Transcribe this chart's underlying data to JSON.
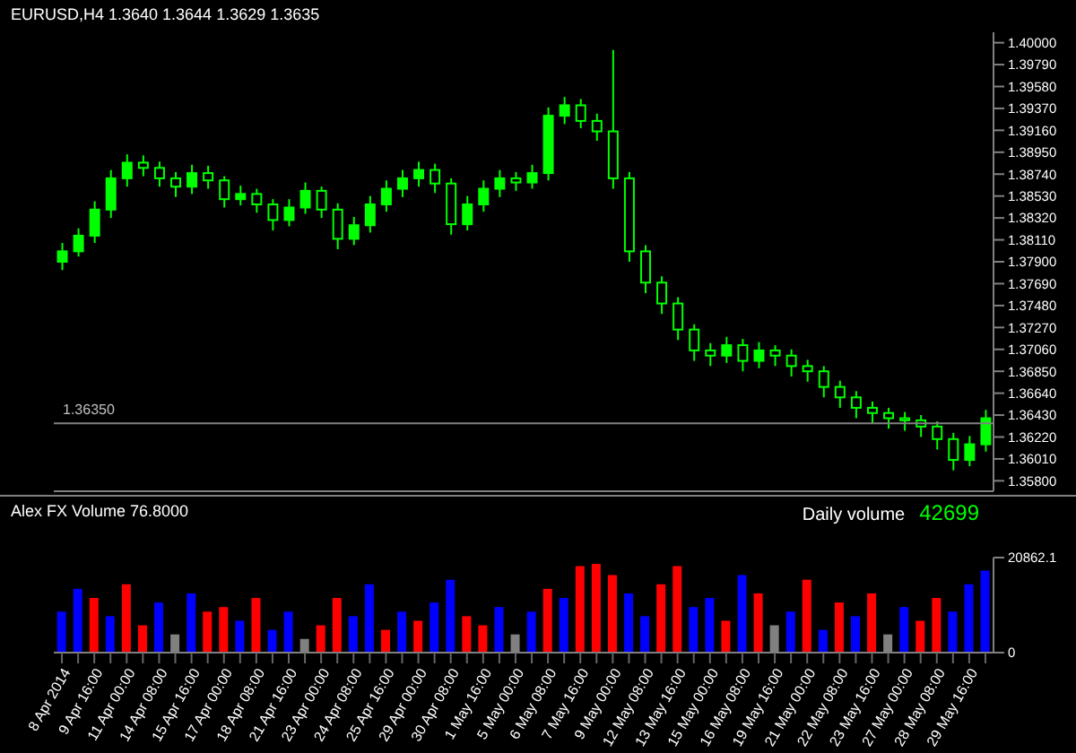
{
  "chart_data": [
    {
      "type": "candlestick",
      "title": "EURUSD,H4 1.3640 1.3644 1.3629 1.3635",
      "color": "#00ff00",
      "tick_labels": "y",
      "ohlc": [
        [
          1.379,
          1.3808,
          1.3782,
          1.38
        ],
        [
          1.38,
          1.3822,
          1.3795,
          1.3815
        ],
        [
          1.3815,
          1.3848,
          1.3808,
          1.384
        ],
        [
          1.384,
          1.3878,
          1.3832,
          1.387
        ],
        [
          1.387,
          1.3893,
          1.3862,
          1.3885
        ],
        [
          1.3885,
          1.3892,
          1.3872,
          1.388
        ],
        [
          1.388,
          1.3886,
          1.3862,
          1.387
        ],
        [
          1.387,
          1.3876,
          1.3852,
          1.3862
        ],
        [
          1.3862,
          1.3883,
          1.3855,
          1.3875
        ],
        [
          1.3875,
          1.3882,
          1.386,
          1.3868
        ],
        [
          1.3868,
          1.3872,
          1.3842,
          1.385
        ],
        [
          1.385,
          1.3863,
          1.3844,
          1.3855
        ],
        [
          1.3855,
          1.386,
          1.3837,
          1.3845
        ],
        [
          1.3845,
          1.385,
          1.382,
          1.383
        ],
        [
          1.383,
          1.385,
          1.3824,
          1.3842
        ],
        [
          1.3842,
          1.3866,
          1.3836,
          1.3858
        ],
        [
          1.3858,
          1.3862,
          1.3832,
          1.384
        ],
        [
          1.384,
          1.3846,
          1.3802,
          1.3812
        ],
        [
          1.3812,
          1.3833,
          1.3806,
          1.3825
        ],
        [
          1.3825,
          1.3853,
          1.3818,
          1.3845
        ],
        [
          1.3845,
          1.3868,
          1.3838,
          1.386
        ],
        [
          1.386,
          1.3878,
          1.3852,
          1.387
        ],
        [
          1.387,
          1.3886,
          1.3862,
          1.3878
        ],
        [
          1.3878,
          1.3884,
          1.3856,
          1.3865
        ],
        [
          1.3865,
          1.387,
          1.3816,
          1.3826
        ],
        [
          1.3826,
          1.3853,
          1.382,
          1.3845
        ],
        [
          1.3845,
          1.3868,
          1.3838,
          1.386
        ],
        [
          1.386,
          1.3878,
          1.3852,
          1.387
        ],
        [
          1.387,
          1.3876,
          1.3858,
          1.3866
        ],
        [
          1.3866,
          1.3883,
          1.386,
          1.3875
        ],
        [
          1.3875,
          1.3938,
          1.3868,
          1.393
        ],
        [
          1.393,
          1.3948,
          1.3922,
          1.394
        ],
        [
          1.394,
          1.3946,
          1.3918,
          1.3925
        ],
        [
          1.3925,
          1.3932,
          1.3906,
          1.3915
        ],
        [
          1.3915,
          1.3993,
          1.386,
          1.387
        ],
        [
          1.387,
          1.3876,
          1.379,
          1.38
        ],
        [
          1.38,
          1.3806,
          1.376,
          1.377
        ],
        [
          1.377,
          1.3776,
          1.374,
          1.375
        ],
        [
          1.375,
          1.3756,
          1.3715,
          1.3725
        ],
        [
          1.3725,
          1.373,
          1.3695,
          1.3705
        ],
        [
          1.3705,
          1.3712,
          1.369,
          1.37
        ],
        [
          1.37,
          1.3718,
          1.3693,
          1.371
        ],
        [
          1.371,
          1.3716,
          1.3685,
          1.3695
        ],
        [
          1.3695,
          1.3713,
          1.3688,
          1.3705
        ],
        [
          1.3705,
          1.371,
          1.369,
          1.37
        ],
        [
          1.37,
          1.3706,
          1.368,
          1.369
        ],
        [
          1.369,
          1.3696,
          1.3675,
          1.3685
        ],
        [
          1.3685,
          1.369,
          1.366,
          1.367
        ],
        [
          1.367,
          1.3676,
          1.365,
          1.366
        ],
        [
          1.366,
          1.3666,
          1.364,
          1.365
        ],
        [
          1.365,
          1.3656,
          1.3635,
          1.3645
        ],
        [
          1.3645,
          1.365,
          1.363,
          1.364
        ],
        [
          1.364,
          1.3646,
          1.3628,
          1.3638
        ],
        [
          1.3638,
          1.3643,
          1.3622,
          1.3632
        ],
        [
          1.3632,
          1.3637,
          1.361,
          1.362
        ],
        [
          1.362,
          1.3626,
          1.359,
          1.36
        ],
        [
          1.36,
          1.3623,
          1.3594,
          1.3615
        ],
        [
          1.3615,
          1.3648,
          1.3608,
          1.364
        ]
      ],
      "ylim": [
        1.357,
        1.401
      ],
      "yticks": [
        {
          "value": 1.358,
          "label": "1.35800"
        },
        {
          "value": 1.3601,
          "label": "1.36010"
        },
        {
          "value": 1.3622,
          "label": "1.36220"
        },
        {
          "value": 1.3643,
          "label": "1.36430"
        },
        {
          "value": 1.3664,
          "label": "1.36640"
        },
        {
          "value": 1.3685,
          "label": "1.36850"
        },
        {
          "value": 1.3706,
          "label": "1.37060"
        },
        {
          "value": 1.3727,
          "label": "1.37270"
        },
        {
          "value": 1.3748,
          "label": "1.37480"
        },
        {
          "value": 1.3769,
          "label": "1.37690"
        },
        {
          "value": 1.379,
          "label": "1.37900"
        },
        {
          "value": 1.3811,
          "label": "1.38110"
        },
        {
          "value": 1.3832,
          "label": "1.38320"
        },
        {
          "value": 1.3853,
          "label": "1.38530"
        },
        {
          "value": 1.3874,
          "label": "1.38740"
        },
        {
          "value": 1.3895,
          "label": "1.38950"
        },
        {
          "value": 1.3916,
          "label": "1.39160"
        },
        {
          "value": 1.3937,
          "label": "1.39370"
        },
        {
          "value": 1.3958,
          "label": "1.39580"
        },
        {
          "value": 1.3979,
          "label": "1.39790"
        },
        {
          "value": 1.4,
          "label": "1.40000"
        }
      ],
      "ref_lines": [
        {
          "axis": "y",
          "value": 1.3635,
          "label": "1.36350",
          "color": "#808080"
        }
      ]
    },
    {
      "type": "bar",
      "title": "Alex FX Volume 76.8000",
      "annotations": [
        "Daily volume",
        "42699"
      ],
      "categories": [
        "8 Apr 2014",
        null,
        "9 Apr 16:00",
        null,
        "11 Apr 00:00",
        null,
        "14 Apr 08:00",
        null,
        "15 Apr 16:00",
        null,
        "17 Apr 00:00",
        null,
        "18 Apr 08:00",
        null,
        "21 Apr 16:00",
        null,
        "23 Apr 00:00",
        null,
        "24 Apr 08:00",
        null,
        "25 Apr 16:00",
        null,
        "29 Apr 00:00",
        null,
        "30 Apr 08:00",
        null,
        "1 May 16:00",
        null,
        "5 May 00:00",
        null,
        "6 May 08:00",
        null,
        "7 May 16:00",
        null,
        "9 May 00:00",
        null,
        "12 May 08:00",
        null,
        "13 May 16:00",
        null,
        "15 May 00:00",
        null,
        "16 May 08:00",
        null,
        "19 May 16:00",
        null,
        "21 May 00:00",
        null,
        "22 May 08:00",
        null,
        "23 May 16:00",
        null,
        "27 May 00:00",
        null,
        "28 May 08:00",
        null,
        "29 May 16:00",
        null
      ],
      "values": [
        9000,
        14000,
        12000,
        8000,
        15000,
        6000,
        11000,
        4000,
        13000,
        9000,
        10000,
        7000,
        12000,
        5000,
        9000,
        3000,
        6000,
        12000,
        8000,
        15000,
        5000,
        9000,
        7000,
        11000,
        16000,
        8000,
        6000,
        10000,
        4000,
        9000,
        14000,
        12000,
        19000,
        19500,
        17000,
        13000,
        8000,
        15000,
        19000,
        10000,
        12000,
        7000,
        17000,
        13000,
        6000,
        9000,
        16000,
        5000,
        11000,
        8000,
        13000,
        4000,
        10000,
        7000,
        12000,
        9000,
        15000,
        18000
      ],
      "colors": [
        "#0000ff",
        "#0000ff",
        "#ff0000",
        "#0000ff",
        "#ff0000",
        "#ff0000",
        "#0000ff",
        "#808080",
        "#0000ff",
        "#ff0000",
        "#ff0000",
        "#0000ff",
        "#ff0000",
        "#0000ff",
        "#0000ff",
        "#808080",
        "#ff0000",
        "#ff0000",
        "#0000ff",
        "#0000ff",
        "#ff0000",
        "#0000ff",
        "#ff0000",
        "#0000ff",
        "#0000ff",
        "#ff0000",
        "#ff0000",
        "#0000ff",
        "#808080",
        "#0000ff",
        "#ff0000",
        "#0000ff",
        "#ff0000",
        "#ff0000",
        "#ff0000",
        "#0000ff",
        "#0000ff",
        "#ff0000",
        "#ff0000",
        "#0000ff",
        "#0000ff",
        "#ff0000",
        "#0000ff",
        "#ff0000",
        "#808080",
        "#0000ff",
        "#ff0000",
        "#0000ff",
        "#ff0000",
        "#0000ff",
        "#ff0000",
        "#808080",
        "#0000ff",
        "#ff0000",
        "#ff0000",
        "#0000ff",
        "#0000ff",
        "#0000ff"
      ],
      "ylim": [
        0,
        20862.1
      ],
      "yticks": [
        0,
        {
          "value": 20862.1,
          "label": "20862.1"
        }
      ]
    }
  ]
}
